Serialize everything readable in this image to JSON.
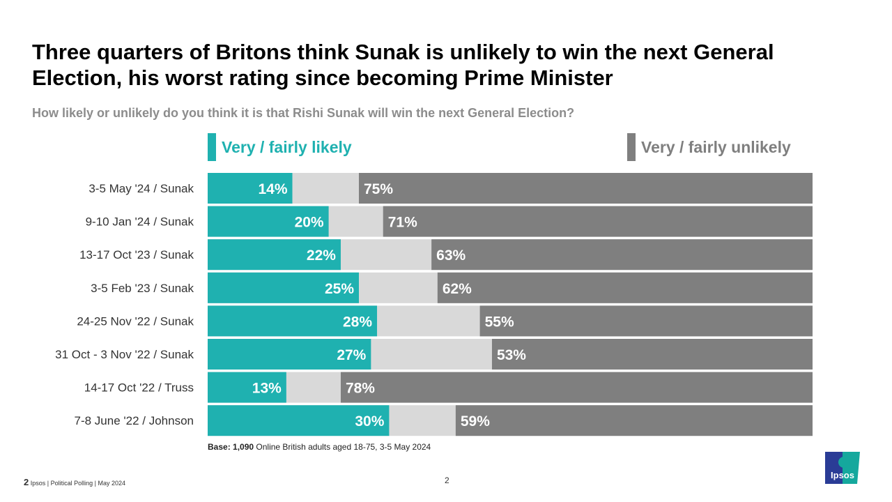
{
  "title": "Three quarters of Britons think Sunak is unlikely to win the next General Election, his worst rating since becoming Prime Minister",
  "subtitle": "How likely or unlikely do you think it is that Rishi Sunak will win the next General Election?",
  "colors": {
    "likely": "#1fb1b0",
    "dont_know": "#d9d9d9",
    "unlikely": "#7f7f7f"
  },
  "chart_data": {
    "type": "bar",
    "orientation": "horizontal",
    "stacked": true,
    "xlim": [
      0,
      100
    ],
    "legend": "top",
    "categories": [
      "3-5 May '24 / Sunak",
      "9-10 Jan '24 /  Sunak",
      "13-17 Oct '23 / Sunak",
      "3-5 Feb '23 / Sunak",
      "24-25 Nov '22 / Sunak",
      "31 Oct - 3 Nov '22 / Sunak",
      "14-17 Oct '22 / Truss",
      "7-8 June '22 / Johnson"
    ],
    "series": [
      {
        "name": "Very / fairly likely",
        "values": [
          14,
          20,
          22,
          25,
          28,
          27,
          13,
          30
        ]
      },
      {
        "name": "Very / fairly unlikely",
        "values": [
          75,
          71,
          63,
          62,
          55,
          53,
          78,
          59
        ]
      }
    ]
  },
  "base": {
    "label": "Base:",
    "value": "1,090",
    "text": "Online British adults aged 18-75, 3-5 May 2024"
  },
  "footer": {
    "num": "2",
    "text": "Ipsos | Political Polling | May 2024",
    "page": "2"
  },
  "logo": {
    "text": "Ipsos"
  }
}
